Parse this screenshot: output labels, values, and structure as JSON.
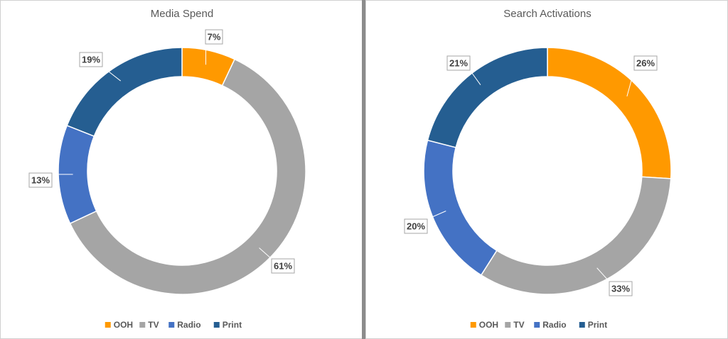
{
  "chart_data": [
    {
      "type": "doughnut",
      "title": "Media Spend",
      "categories": [
        "OOH",
        "TV",
        "Radio",
        "Print"
      ],
      "values": [
        7,
        61,
        13,
        19
      ],
      "data_labels": [
        "7%",
        "61%",
        "13%",
        "19%"
      ],
      "colors": [
        "#FF9900",
        "#A5A5A5",
        "#4472C4",
        "#255E91"
      ],
      "legend_position": "bottom"
    },
    {
      "type": "doughnut",
      "title": "Search Activations",
      "categories": [
        "OOH",
        "TV",
        "Radio",
        "Print"
      ],
      "values": [
        26,
        33,
        20,
        21
      ],
      "data_labels": [
        "26%",
        "33%",
        "20%",
        "21%"
      ],
      "colors": [
        "#FF9900",
        "#A5A5A5",
        "#4472C4",
        "#255E91"
      ],
      "legend_position": "bottom"
    }
  ]
}
